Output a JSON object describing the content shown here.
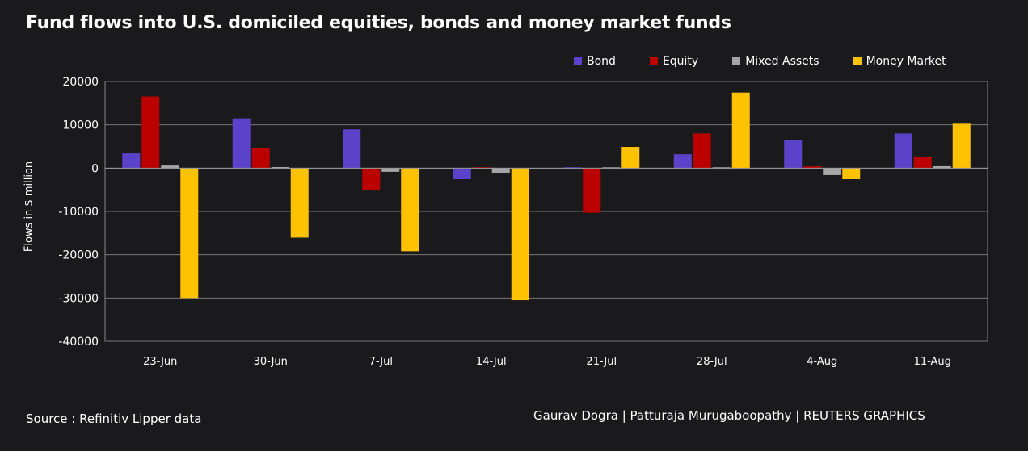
{
  "title": "Fund flows into U.S. domiciled equities, bonds and money market funds",
  "source": "Source : Refinitiv Lipper data",
  "credit": "Gaurav Dogra | Patturaja Murugaboopathy | REUTERS GRAPHICS",
  "chart_data": {
    "type": "bar",
    "ylabel": "Flows in $ million",
    "ylim": [
      -40000,
      20000
    ],
    "yticks": [
      20000,
      10000,
      0,
      -10000,
      -20000,
      -30000,
      -40000
    ],
    "grid": true,
    "legend_position": "top-right",
    "categories": [
      "23-Jun",
      "30-Jun",
      "7-Jul",
      "14-Jul",
      "21-Jul",
      "28-Jul",
      "4-Aug",
      "11-Aug"
    ],
    "series": [
      {
        "name": "Bond",
        "color": "#5a43c8",
        "values": [
          3400,
          11500,
          8950,
          -2550,
          200,
          3200,
          6550,
          8000
        ]
      },
      {
        "name": "Equity",
        "color": "#bb0000",
        "values": [
          16550,
          4700,
          -5100,
          200,
          -10300,
          8000,
          400,
          2650
        ]
      },
      {
        "name": "Mixed Assets",
        "color": "#a6a6a6",
        "values": [
          600,
          250,
          -850,
          -1050,
          200,
          200,
          -1600,
          450
        ]
      },
      {
        "name": "Money Market",
        "color": "#ffc200",
        "values": [
          -30000,
          -16050,
          -19200,
          -30500,
          4900,
          17450,
          -2550,
          10250
        ]
      }
    ]
  }
}
